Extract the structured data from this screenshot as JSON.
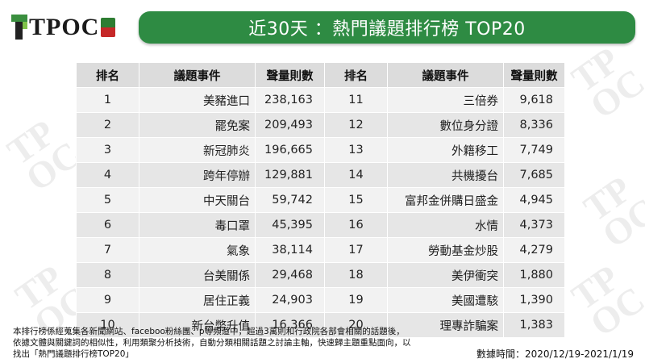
{
  "brand": {
    "logo_text": "TPOC"
  },
  "title": "近30天 ：熱門議題排行榜 TOP20",
  "table": {
    "headers": [
      "排名",
      "議題事件",
      "聲量則數",
      "排名",
      "議題事件",
      "聲量則數"
    ],
    "rows": [
      {
        "rank_a": "1",
        "topic_a": "美豬進口",
        "count_a": "238,163",
        "rank_b": "11",
        "topic_b": "三倍券",
        "count_b": "9,618"
      },
      {
        "rank_a": "2",
        "topic_a": "罷免案",
        "count_a": "209,493",
        "rank_b": "12",
        "topic_b": "數位身分證",
        "count_b": "8,336"
      },
      {
        "rank_a": "3",
        "topic_a": "新冠肺炎",
        "count_a": "196,665",
        "rank_b": "13",
        "topic_b": "外籍移工",
        "count_b": "7,749"
      },
      {
        "rank_a": "4",
        "topic_a": "跨年停辦",
        "count_a": "129,881",
        "rank_b": "14",
        "topic_b": "共機擾台",
        "count_b": "7,685"
      },
      {
        "rank_a": "5",
        "topic_a": "中天關台",
        "count_a": "59,742",
        "rank_b": "15",
        "topic_b": "富邦金併購日盛金",
        "count_b": "4,945"
      },
      {
        "rank_a": "6",
        "topic_a": "毒口罩",
        "count_a": "45,395",
        "rank_b": "16",
        "topic_b": "水情",
        "count_b": "4,373"
      },
      {
        "rank_a": "7",
        "topic_a": "氣象",
        "count_a": "38,114",
        "rank_b": "17",
        "topic_b": "勞動基金炒股",
        "count_b": "4,279"
      },
      {
        "rank_a": "8",
        "topic_a": "台美關係",
        "count_a": "29,468",
        "rank_b": "18",
        "topic_b": "美伊衝突",
        "count_b": "1,880"
      },
      {
        "rank_a": "9",
        "topic_a": "居住正義",
        "count_a": "24,903",
        "rank_b": "19",
        "topic_b": "美國遭駭",
        "count_b": "1,390"
      },
      {
        "rank_a": "10",
        "topic_a": "新台幣升值",
        "count_a": "16,366",
        "rank_b": "20",
        "topic_b": "理專詐騙案",
        "count_b": "1,383"
      }
    ]
  },
  "footnote": {
    "line1": "本排行榜係經蒐集各新聞網站、faceboo粉絲團、p等頻道中，超過3萬則和行政院各部會相關的話題後，",
    "line2": "依據文體與關鍵詞的相似性，利用類聚分析技術，自動分類相關話題之討論主軸，快速歸主題重點面向，以",
    "line3": "找出「熱門議題排行榜TOP20」"
  },
  "date_range": "數據時間：2020/12/19-2021/1/19",
  "colors": {
    "banner": "#2e8b43",
    "header_bg": "#dcdcdc",
    "row_bg": "#f2f2f2"
  }
}
